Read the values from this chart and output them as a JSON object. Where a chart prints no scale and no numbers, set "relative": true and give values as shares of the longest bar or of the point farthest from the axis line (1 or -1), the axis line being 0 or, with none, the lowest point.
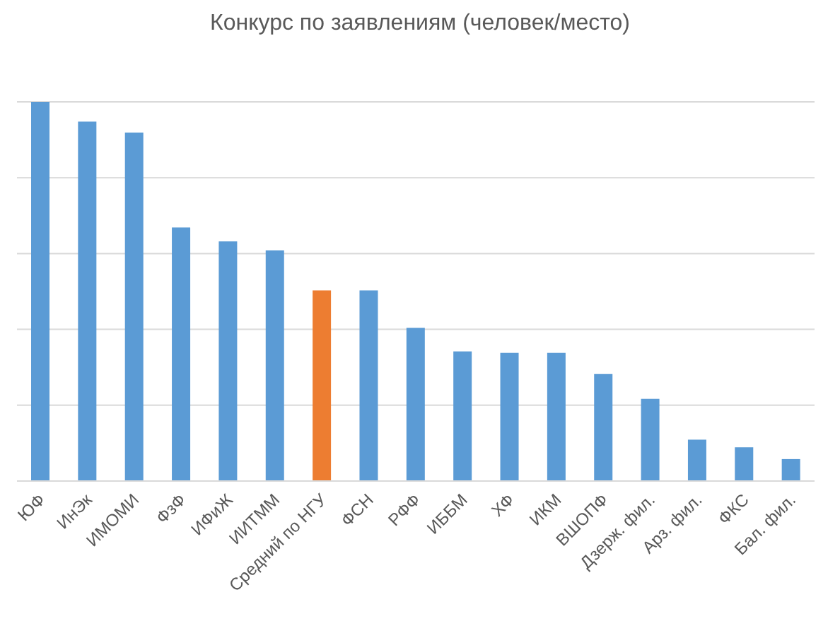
{
  "chart_data": {
    "type": "bar",
    "title": "Конкурс по заявлениям (человек/место)",
    "relative": true,
    "grid": "y",
    "categories": [
      "ЮФ",
      "ИнЭк",
      "ИМОМИ",
      "ФзФ",
      "ИФиЖ",
      "ИИТММ",
      "Средний по НГУ",
      "ФСН",
      "РФФ",
      "ИББМ",
      "ХФ",
      "ИКМ",
      "ВШОПФ",
      "Дзерж. фил.",
      "Арз. фил.",
      "ФКС",
      "Бал. фил."
    ],
    "values": [
      1,
      0.948,
      0.919,
      0.669,
      0.632,
      0.608,
      0.503,
      0.503,
      0.404,
      0.342,
      0.338,
      0.338,
      0.282,
      0.217,
      0.109,
      0.089,
      0.058
    ],
    "colors": [
      "#5b9bd5",
      "#5b9bd5",
      "#5b9bd5",
      "#5b9bd5",
      "#5b9bd5",
      "#5b9bd5",
      "#ed7d31",
      "#5b9bd5",
      "#5b9bd5",
      "#5b9bd5",
      "#5b9bd5",
      "#5b9bd5",
      "#5b9bd5",
      "#5b9bd5",
      "#5b9bd5",
      "#5b9bd5",
      "#5b9bd5"
    ]
  }
}
